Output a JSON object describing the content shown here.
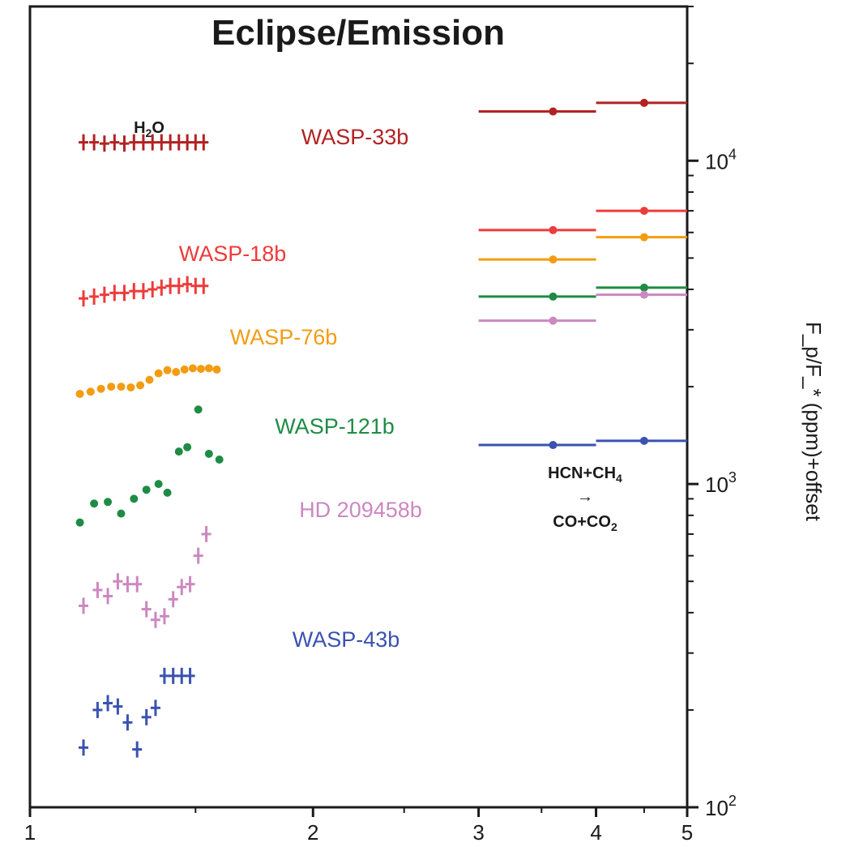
{
  "chart_data": {
    "type": "scatter",
    "title": "Eclipse/Emission",
    "ylabel": "F_p/F_* (ppm)+offset",
    "xscale": "log",
    "yscale": "log",
    "xlim": [
      1,
      5
    ],
    "ylim": [
      100,
      30000
    ],
    "x_ticks": [
      "1",
      "2",
      "3",
      "4",
      "5"
    ],
    "y_ticks": [
      {
        "base": "10",
        "exp": "2"
      },
      {
        "base": "10",
        "exp": "3"
      },
      {
        "base": "10",
        "exp": "4"
      }
    ],
    "series": [
      {
        "name": "WASP-33b",
        "color": "#b22222",
        "marker": "plus",
        "wfc3": {
          "x": [
            1.14,
            1.17,
            1.2,
            1.23,
            1.26,
            1.29,
            1.32,
            1.35,
            1.38,
            1.41,
            1.44,
            1.47,
            1.5,
            1.53
          ],
          "y": [
            11400,
            11400,
            11300,
            11400,
            11300,
            11400,
            11400,
            11400,
            11400,
            11400,
            11400,
            11400,
            11400,
            11400
          ]
        },
        "spitzer": {
          "x": [
            3.6,
            4.5
          ],
          "y": [
            14200,
            15100
          ],
          "xlo": [
            3.0,
            4.0
          ],
          "xhi": [
            4.0,
            5.0
          ]
        }
      },
      {
        "name": "WASP-18b",
        "color": "#ee3b3b",
        "marker": "plus",
        "wfc3": {
          "x": [
            1.14,
            1.17,
            1.2,
            1.23,
            1.26,
            1.29,
            1.32,
            1.35,
            1.38,
            1.41,
            1.44,
            1.47,
            1.5,
            1.53
          ],
          "y": [
            3750,
            3800,
            3850,
            3900,
            3900,
            3950,
            3950,
            4000,
            4050,
            4100,
            4100,
            4150,
            4100,
            4100
          ]
        },
        "spitzer": {
          "x": [
            3.6,
            4.5
          ],
          "y": [
            6100,
            7000
          ],
          "xlo": [
            3.0,
            4.0
          ],
          "xhi": [
            4.0,
            5.0
          ]
        }
      },
      {
        "name": "WASP-76b",
        "color": "#f39c12",
        "marker": "dot",
        "wfc3": {
          "x": [
            1.13,
            1.16,
            1.19,
            1.22,
            1.25,
            1.28,
            1.31,
            1.34,
            1.37,
            1.4,
            1.43,
            1.46,
            1.49,
            1.52,
            1.55,
            1.58
          ],
          "y": [
            1900,
            1930,
            1970,
            2000,
            2000,
            1990,
            2020,
            2100,
            2200,
            2250,
            2220,
            2260,
            2280,
            2270,
            2280,
            2260
          ]
        },
        "spitzer": {
          "x": [
            3.6,
            4.5
          ],
          "y": [
            4950,
            5800
          ],
          "xlo": [
            3.0,
            4.0
          ],
          "xhi": [
            4.0,
            5.0
          ]
        }
      },
      {
        "name": "WASP-121b",
        "color": "#1e8c45",
        "marker": "dot",
        "wfc3": {
          "x": [
            1.13,
            1.17,
            1.21,
            1.25,
            1.29,
            1.33,
            1.37,
            1.4,
            1.44,
            1.47,
            1.51,
            1.55,
            1.59
          ],
          "y": [
            760,
            870,
            880,
            810,
            900,
            960,
            1000,
            940,
            1260,
            1300,
            1700,
            1240,
            1190
          ]
        },
        "spitzer": {
          "x": [
            3.6,
            4.5
          ],
          "y": [
            3800,
            4050
          ],
          "xlo": [
            3.0,
            4.0
          ],
          "xhi": [
            4.0,
            5.0
          ]
        }
      },
      {
        "name": "HD 209458b",
        "color": "#cc88c0",
        "marker": "plus",
        "wfc3": {
          "x": [
            1.14,
            1.18,
            1.21,
            1.24,
            1.27,
            1.3,
            1.33,
            1.36,
            1.39,
            1.42,
            1.45,
            1.48,
            1.51,
            1.54
          ],
          "y": [
            420,
            470,
            450,
            500,
            490,
            490,
            410,
            380,
            390,
            440,
            480,
            490,
            600,
            700
          ]
        },
        "spitzer": {
          "x": [
            3.6,
            4.5
          ],
          "y": [
            3200,
            3850
          ],
          "xlo": [
            3.0,
            4.0
          ],
          "xhi": [
            4.0,
            5.0
          ]
        }
      },
      {
        "name": "WASP-43b",
        "color": "#3a52b0",
        "marker": "plus",
        "wfc3": {
          "x": [
            1.14,
            1.18,
            1.21,
            1.24,
            1.27,
            1.3,
            1.33,
            1.36,
            1.39,
            1.42,
            1.45,
            1.48
          ],
          "y": [
            153,
            200,
            210,
            205,
            183,
            151,
            190,
            203,
            255,
            255,
            255,
            255
          ]
        },
        "spitzer": {
          "x": [
            3.6,
            4.5
          ],
          "y": [
            1320,
            1360
          ],
          "xlo": [
            3.0,
            4.0
          ],
          "xhi": [
            4.0,
            5.0
          ]
        }
      }
    ],
    "annotations": {
      "h2o": {
        "main": "H",
        "sub": "2",
        "tail": "O"
      },
      "hcn_line1": {
        "main": "HCN+CH",
        "sub": "4"
      },
      "arrow": "→",
      "co_line2": {
        "main": "CO+CO",
        "sub": "2"
      }
    },
    "grid": false,
    "legend": "inline-labels"
  }
}
